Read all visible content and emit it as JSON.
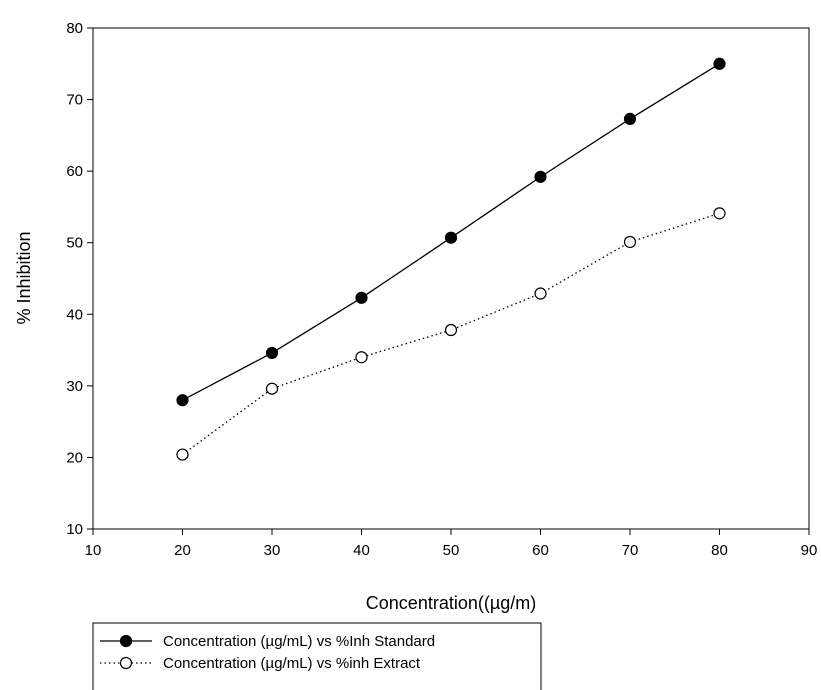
{
  "chart_data": {
    "type": "line",
    "xlabel": "Concentration((µg/m)",
    "ylabel": "% Inhibition",
    "xlim": [
      10,
      90
    ],
    "ylim": [
      10,
      80
    ],
    "x_ticks": [
      "10",
      "20",
      "30",
      "40",
      "50",
      "60",
      "70",
      "80",
      "90"
    ],
    "y_ticks": [
      "10",
      "20",
      "30",
      "40",
      "50",
      "60",
      "70",
      "80"
    ],
    "grid": false,
    "legend_position": "bottom-left, below chart",
    "x": [
      20,
      30,
      40,
      50,
      60,
      70,
      80
    ],
    "series": [
      {
        "name": "Concentration (µg/mL) vs %Inh Standard",
        "values": [
          28.0,
          34.6,
          42.3,
          50.7,
          59.2,
          67.3,
          75.0
        ],
        "marker": "filled-circle",
        "line_style": "solid",
        "color": "#000000"
      },
      {
        "name": "Concentration (µg/mL) vs %inh Extract",
        "values": [
          20.4,
          29.6,
          34.0,
          37.8,
          42.9,
          50.1,
          54.1
        ],
        "marker": "open-circle",
        "line_style": "dotted",
        "color": "#000000"
      }
    ]
  }
}
